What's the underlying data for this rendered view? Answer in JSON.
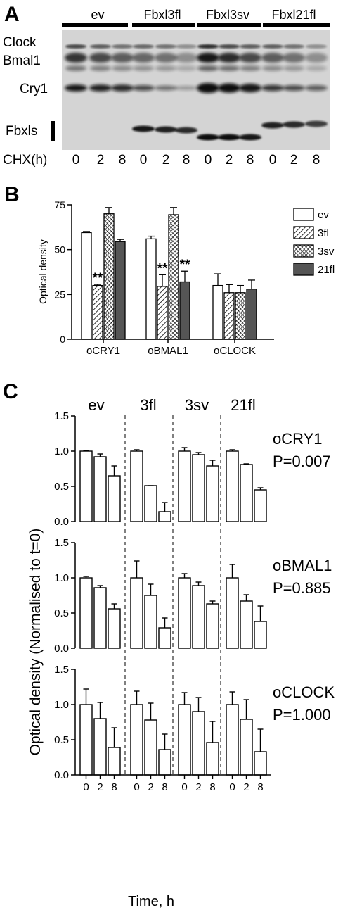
{
  "panel_a": {
    "letter": "A",
    "groups": [
      "ev",
      "Fbxl3fl",
      "Fbxl3sv",
      "Fbxl21fl"
    ],
    "row_labels": {
      "clock": "Clock",
      "bmal1": "Bmal1",
      "cry1": "Cry1",
      "fbxls": "Fbxls"
    },
    "chx_label": "CHX(h)",
    "times": [
      "0",
      "2",
      "8"
    ]
  },
  "panel_b": {
    "letter": "B"
  },
  "panel_c": {
    "letter": "C"
  },
  "colors": {
    "bar_fill_empty": "#ffffff",
    "bar_fill_dark": "#555555",
    "ink": "#000000",
    "blot_bg": "#d4d4d4"
  },
  "chart_data": [
    {
      "type": "bar",
      "panel": "B",
      "categories": [
        "oCRY1",
        "oBMAL1",
        "oCLOCK"
      ],
      "ylabel": "Optical density",
      "ylim": [
        0,
        75
      ],
      "yticks": [
        0,
        25,
        50,
        75
      ],
      "legend_position": "right",
      "series": [
        {
          "name": "ev",
          "pattern": "empty",
          "values": [
            59.5,
            56.0,
            30.0
          ],
          "errors": [
            0.6,
            1.5,
            6.5
          ]
        },
        {
          "name": "3fl",
          "pattern": "diagonal",
          "values": [
            30.0,
            29.5,
            26.0
          ],
          "errors": [
            0.6,
            6.5,
            4.5
          ]
        },
        {
          "name": "3sv",
          "pattern": "crosshatch",
          "values": [
            70.0,
            69.5,
            26.0
          ],
          "errors": [
            3.5,
            4.0,
            4.0
          ]
        },
        {
          "name": "21fl",
          "pattern": "dark",
          "values": [
            54.5,
            32.0,
            28.0
          ],
          "errors": [
            1.2,
            6.0,
            5.0
          ]
        }
      ],
      "significance": [
        {
          "category": "oCRY1",
          "series": "3fl",
          "label": "**"
        },
        {
          "category": "oBMAL1",
          "series": "3fl",
          "label": "**"
        },
        {
          "category": "oBMAL1",
          "series": "21fl",
          "label": "**"
        }
      ]
    },
    {
      "type": "bar",
      "panel": "C",
      "groups": [
        "ev",
        "3fl",
        "3sv",
        "21fl"
      ],
      "x": [
        "0",
        "2",
        "8"
      ],
      "xlabel": "Time, h",
      "ylabel": "Optical density (Normalised to t=0)",
      "ylim": [
        0,
        1.5
      ],
      "yticks": [
        "0.0",
        "0.5",
        "1.0",
        "1.5"
      ],
      "subplots": [
        {
          "protein": "oCRY1",
          "p_value": "P=0.007",
          "values": {
            "ev": [
              1.0,
              0.92,
              0.65
            ],
            "3fl": [
              1.0,
              0.51,
              0.14
            ],
            "3sv": [
              1.0,
              0.95,
              0.79
            ],
            "21fl": [
              1.0,
              0.81,
              0.45
            ]
          },
          "errors": {
            "ev": [
              0.01,
              0.04,
              0.14
            ],
            "3fl": [
              0.02,
              0.0,
              0.13
            ],
            "3sv": [
              0.05,
              0.03,
              0.08
            ],
            "21fl": [
              0.02,
              0.01,
              0.03
            ]
          }
        },
        {
          "protein": "oBMAL1",
          "p_value": "P=0.885",
          "values": {
            "ev": [
              1.0,
              0.86,
              0.56
            ],
            "3fl": [
              1.0,
              0.75,
              0.29
            ],
            "3sv": [
              1.0,
              0.89,
              0.63
            ],
            "21fl": [
              1.0,
              0.67,
              0.38
            ]
          },
          "errors": {
            "ev": [
              0.02,
              0.03,
              0.07
            ],
            "3fl": [
              0.24,
              0.16,
              0.14
            ],
            "3sv": [
              0.06,
              0.05,
              0.04
            ],
            "21fl": [
              0.19,
              0.09,
              0.22
            ]
          }
        },
        {
          "protein": "oCLOCK",
          "p_value": "P=1.000",
          "values": {
            "ev": [
              1.0,
              0.8,
              0.39
            ],
            "3fl": [
              1.0,
              0.78,
              0.36
            ],
            "3sv": [
              1.0,
              0.9,
              0.46
            ],
            "21fl": [
              1.0,
              0.79,
              0.33
            ]
          },
          "errors": {
            "ev": [
              0.22,
              0.23,
              0.28
            ],
            "3fl": [
              0.19,
              0.24,
              0.22
            ],
            "3sv": [
              0.17,
              0.2,
              0.3
            ],
            "21fl": [
              0.18,
              0.28,
              0.32
            ]
          }
        }
      ]
    }
  ]
}
